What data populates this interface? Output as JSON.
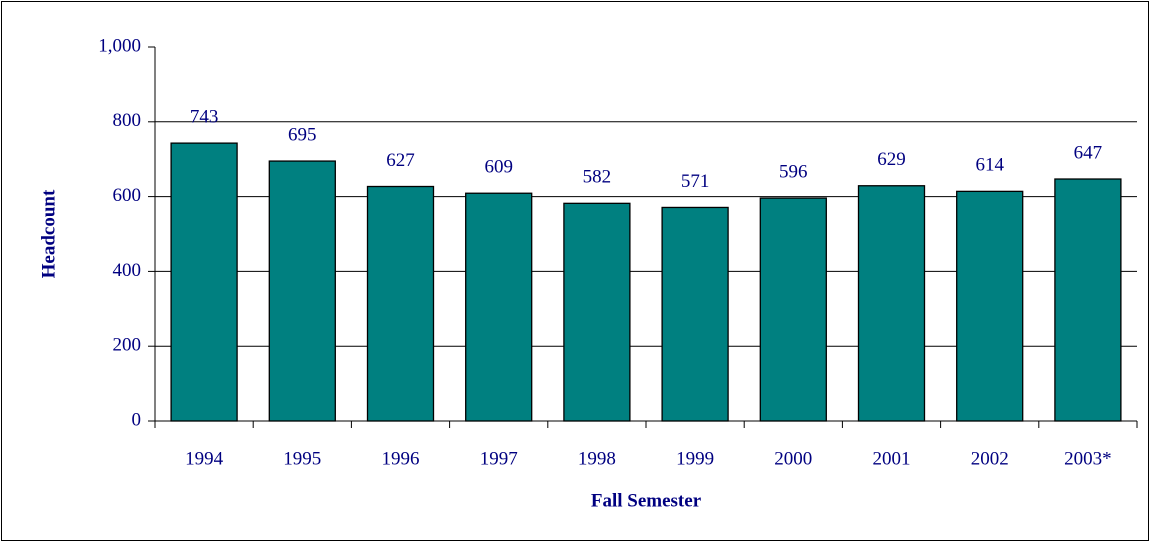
{
  "chart_data": {
    "type": "bar",
    "x_label": "Fall Semester",
    "y_label": "Headcount",
    "categories": [
      "1994",
      "1995",
      "1996",
      "1997",
      "1998",
      "1999",
      "2000",
      "2001",
      "2002",
      "2003*"
    ],
    "values": [
      743,
      695,
      627,
      609,
      582,
      571,
      596,
      629,
      614,
      647
    ],
    "color": "#008080",
    "ylim": [
      0,
      1000
    ],
    "yticks": [
      0,
      200,
      400,
      600,
      800,
      {
        "value": 1000,
        "label": "1,000"
      }
    ],
    "grid": true
  }
}
